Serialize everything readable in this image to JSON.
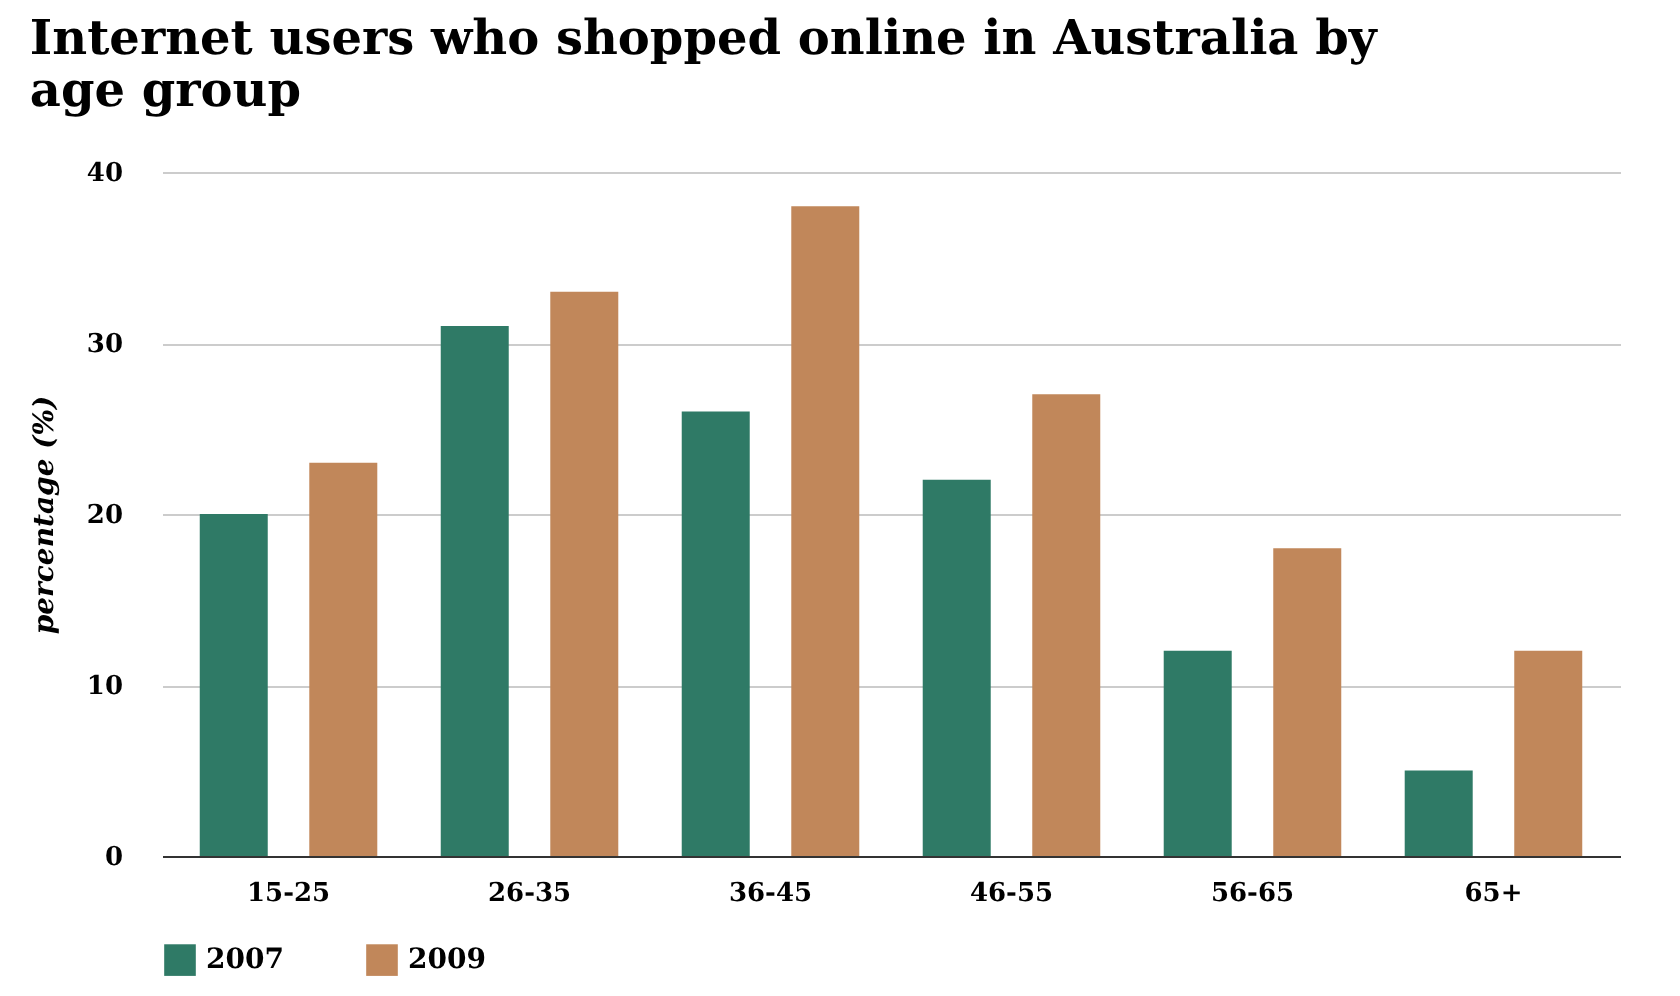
{
  "chart_data": {
    "type": "bar",
    "title": "Internet users who shopped online in Australia by age group",
    "ylabel": "percentage (%)",
    "categories": [
      "15-25",
      "26-35",
      "36-45",
      "46-55",
      "56-65",
      "65+"
    ],
    "series": [
      {
        "name": "2007",
        "color": "#2f7a66",
        "values": [
          20,
          31,
          26,
          22,
          12,
          5
        ]
      },
      {
        "name": "2009",
        "color": "#c1875a",
        "values": [
          23,
          33,
          38,
          27,
          18,
          12
        ]
      }
    ],
    "ylim": [
      0,
      40
    ],
    "yticks": [
      0,
      10,
      20,
      30,
      40
    ],
    "grid": "y",
    "legend": "bottom"
  }
}
